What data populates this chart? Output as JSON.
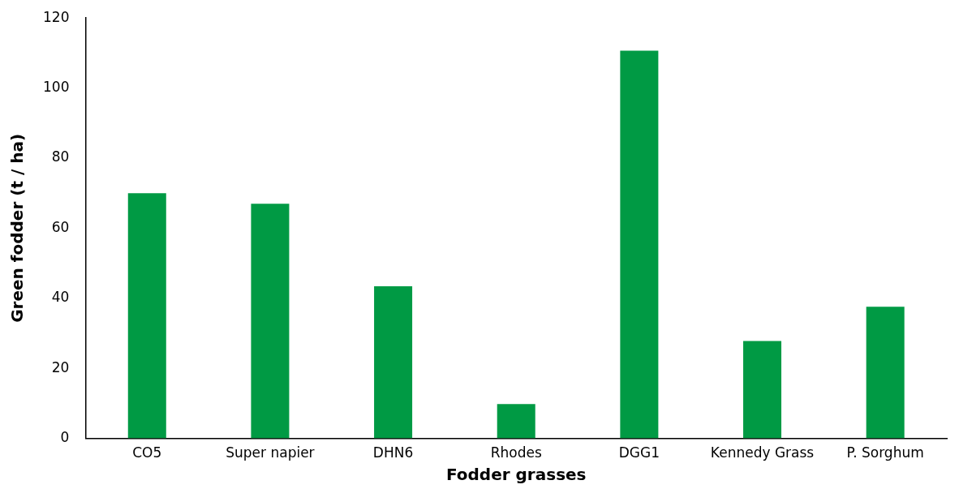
{
  "chart_data": {
    "type": "bar",
    "xlabel": "Fodder grasses",
    "ylabel": "Green fodder (t / ha)",
    "categories": [
      "CO5",
      "Super napier",
      "DHN6",
      "Rhodes",
      "DGG1",
      "Kennedy Grass",
      "P. Sorghum"
    ],
    "values": [
      70,
      67,
      43.4,
      9.8,
      110.7,
      27.8,
      37.6
    ],
    "color": "#009a44",
    "ylim": [
      0,
      120
    ],
    "yticks": [
      0,
      20,
      40,
      60,
      80,
      100,
      120
    ],
    "grid": false,
    "legend": false
  }
}
